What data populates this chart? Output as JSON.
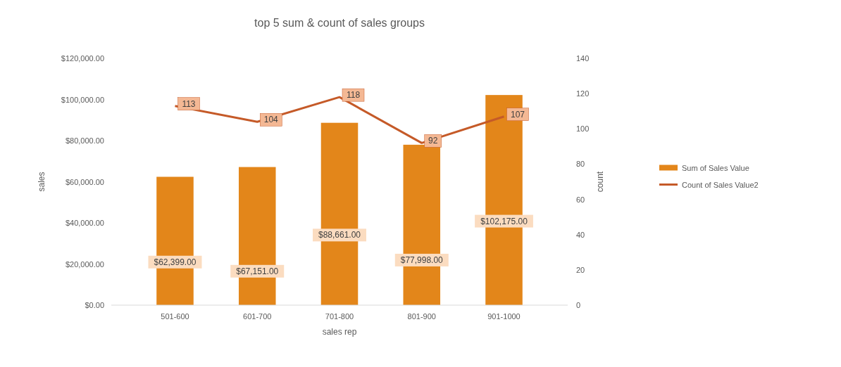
{
  "chart_data": {
    "type": "bar",
    "title": "top 5 sum & count of sales groups",
    "xlabel": "sales rep",
    "ylabel": "sales",
    "y2label": "count",
    "categories": [
      "501-600",
      "601-700",
      "701-800",
      "801-900",
      "901-1000"
    ],
    "series": [
      {
        "name": "Sum of Sales Value",
        "color": "#e3861a",
        "values": [
          62399,
          67151,
          88661,
          77998,
          102175
        ],
        "value_labels": [
          "$62,399.00",
          "$67,151.00",
          "$88,661.00",
          "$77,998.00",
          "$102,175.00"
        ]
      },
      {
        "name": "Count of Sales Value2",
        "type": "line",
        "axis": "y2",
        "color": "#c55a28",
        "values": [
          113,
          104,
          118,
          92,
          107
        ],
        "value_labels": [
          "113",
          "104",
          "118",
          "92",
          "107"
        ]
      }
    ],
    "ylim": [
      0,
      120000
    ],
    "yticks": [
      {
        "value": 0,
        "label": "$0.00"
      },
      {
        "value": 20000,
        "label": "$20,000.00"
      },
      {
        "value": 40000,
        "label": "$40,000.00"
      },
      {
        "value": 60000,
        "label": "$60,000.00"
      },
      {
        "value": 80000,
        "label": "$80,000.00"
      },
      {
        "value": 100000,
        "label": "$100,000.00"
      },
      {
        "value": 120000,
        "label": "$120,000.00"
      }
    ],
    "y2lim": [
      0,
      140
    ],
    "y2ticks": [
      0,
      20,
      40,
      60,
      80,
      100,
      120,
      140
    ],
    "legend": "right",
    "marker": "none",
    "line_style": "solid"
  }
}
